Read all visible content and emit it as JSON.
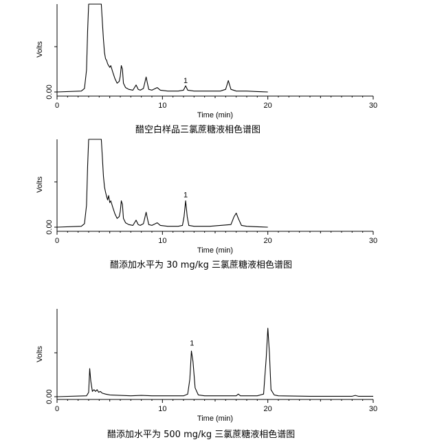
{
  "chart_data": [
    {
      "type": "line",
      "caption": "醋空白样品三氯蔗糖液相色谱图",
      "xlabel": "Time (min)",
      "ylabel": "Volts",
      "xlim": [
        0,
        30
      ],
      "x_ticks": [
        0,
        10,
        20,
        30
      ],
      "y_tick_label": "0.00",
      "ylim": [
        0,
        1.0
      ],
      "trace_end": 20,
      "peak_labels": [
        {
          "x": 12.2,
          "y": 0.07,
          "text": "1"
        }
      ],
      "series": [
        {
          "x": [
            0,
            2.3,
            2.6,
            2.8,
            2.9,
            3.0,
            4.2,
            4.3,
            4.4,
            4.5,
            4.6,
            4.7,
            4.8,
            4.9,
            5.0,
            5.1,
            5.3,
            5.5,
            5.7,
            5.9,
            6.0,
            6.1,
            6.2,
            6.3,
            6.5,
            6.8,
            7.2,
            7.5,
            7.7,
            7.9,
            8.2,
            8.45,
            8.7,
            9.0,
            9.5,
            9.8,
            10.5,
            11.5,
            12.0,
            12.2,
            12.4,
            13.0,
            14.5,
            15.5,
            16.0,
            16.25,
            16.5,
            17.0,
            18.0,
            19.0,
            20.0
          ],
          "y": [
            0.0,
            0.01,
            0.04,
            0.25,
            0.7,
            1.0,
            1.0,
            0.8,
            0.6,
            0.45,
            0.38,
            0.36,
            0.32,
            0.3,
            0.28,
            0.3,
            0.22,
            0.15,
            0.1,
            0.12,
            0.18,
            0.3,
            0.26,
            0.1,
            0.05,
            0.03,
            0.02,
            0.08,
            0.03,
            0.02,
            0.04,
            0.17,
            0.03,
            0.02,
            0.05,
            0.02,
            0.01,
            0.01,
            0.02,
            0.07,
            0.02,
            0.01,
            0.01,
            0.01,
            0.03,
            0.13,
            0.03,
            0.01,
            0.01,
            0.005,
            0.0
          ]
        }
      ]
    },
    {
      "type": "line",
      "caption": "醋添加水平为 30 mg/kg 三氯蔗糖液相色谱图",
      "xlabel": "Time (min)",
      "ylabel": "Volts",
      "xlim": [
        0,
        30
      ],
      "x_ticks": [
        0,
        10,
        20,
        30
      ],
      "y_tick_label": "0.00",
      "ylim": [
        0,
        1.0
      ],
      "trace_end": 20,
      "peak_labels": [
        {
          "x": 12.2,
          "y": 0.31,
          "text": "1"
        }
      ],
      "series": [
        {
          "x": [
            0,
            2.3,
            2.6,
            2.8,
            2.9,
            3.0,
            4.2,
            4.3,
            4.4,
            4.5,
            4.6,
            4.7,
            4.8,
            4.9,
            5.0,
            5.1,
            5.3,
            5.5,
            5.7,
            5.9,
            6.0,
            6.1,
            6.2,
            6.3,
            6.5,
            6.8,
            7.2,
            7.5,
            7.7,
            7.9,
            8.2,
            8.45,
            8.7,
            9.0,
            9.5,
            9.8,
            10.5,
            11.5,
            11.9,
            12.05,
            12.2,
            12.35,
            12.5,
            13.0,
            14.5,
            15.5,
            16.5,
            16.8,
            17.0,
            17.2,
            17.5,
            18.0,
            19.0,
            20.0
          ],
          "y": [
            0.0,
            0.01,
            0.04,
            0.25,
            0.7,
            1.0,
            1.0,
            0.8,
            0.58,
            0.46,
            0.4,
            0.35,
            0.31,
            0.36,
            0.28,
            0.3,
            0.22,
            0.15,
            0.1,
            0.12,
            0.18,
            0.3,
            0.26,
            0.1,
            0.05,
            0.03,
            0.02,
            0.08,
            0.03,
            0.02,
            0.04,
            0.17,
            0.03,
            0.02,
            0.05,
            0.02,
            0.01,
            0.01,
            0.02,
            0.12,
            0.3,
            0.12,
            0.02,
            0.01,
            0.01,
            0.02,
            0.03,
            0.12,
            0.16,
            0.1,
            0.02,
            0.01,
            0.005,
            0.0
          ]
        }
      ]
    },
    {
      "type": "line",
      "caption": "醋添加水平为 500 mg/kg 三氯蔗糖液相色谱图",
      "xlabel": "Time (min)",
      "ylabel": "Volts",
      "xlim": [
        0,
        30
      ],
      "x_ticks": [
        0,
        10,
        20,
        30
      ],
      "y_tick_label": "0.00",
      "ylim": [
        0,
        1.0
      ],
      "trace_end": 30,
      "peak_labels": [
        {
          "x": 12.8,
          "y": 0.55,
          "text": "1"
        }
      ],
      "series": [
        {
          "x": [
            0,
            2.8,
            3.0,
            3.1,
            3.2,
            3.35,
            3.5,
            3.65,
            3.8,
            3.95,
            4.1,
            4.3,
            4.6,
            5.0,
            6.0,
            7.0,
            8.0,
            9.0,
            10.0,
            11.0,
            12.0,
            12.4,
            12.6,
            12.75,
            12.9,
            13.1,
            13.4,
            14.0,
            16.0,
            17.0,
            17.2,
            17.4,
            18.0,
            19.0,
            19.6,
            19.85,
            20.0,
            20.15,
            20.3,
            20.6,
            21.0,
            24.0,
            28.0,
            28.3,
            28.6,
            29.0,
            30.0
          ],
          "y": [
            0.0,
            0.01,
            0.05,
            0.32,
            0.18,
            0.06,
            0.08,
            0.06,
            0.08,
            0.05,
            0.06,
            0.04,
            0.03,
            0.02,
            0.015,
            0.01,
            0.015,
            0.01,
            0.01,
            0.01,
            0.01,
            0.03,
            0.2,
            0.52,
            0.4,
            0.1,
            0.02,
            0.01,
            0.01,
            0.01,
            0.03,
            0.01,
            0.01,
            0.01,
            0.03,
            0.45,
            0.78,
            0.5,
            0.08,
            0.02,
            0.01,
            0.005,
            0.005,
            0.015,
            0.005,
            0.005,
            0.005
          ]
        }
      ]
    }
  ]
}
